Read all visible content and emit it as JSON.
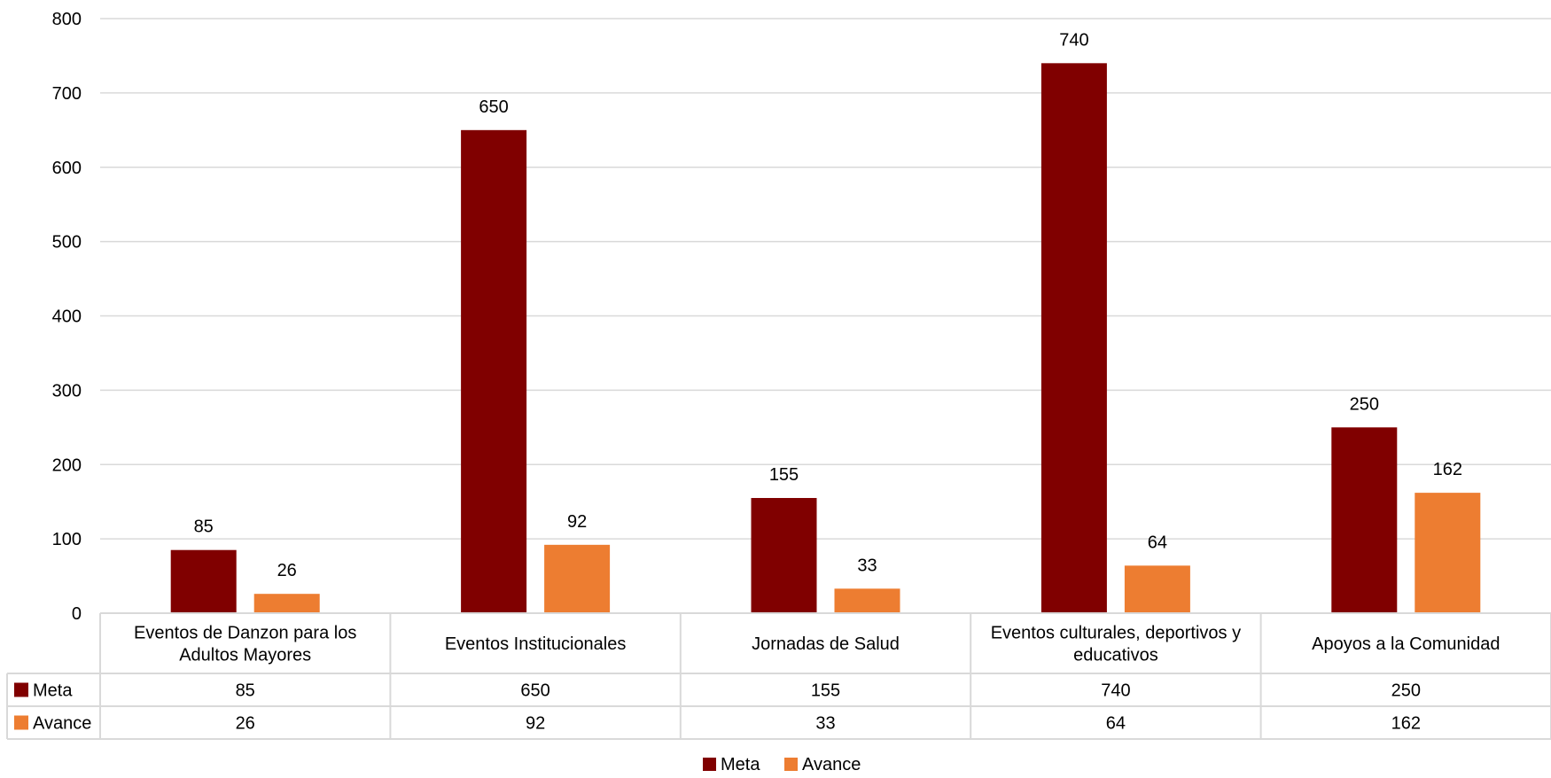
{
  "chart_data": {
    "type": "bar",
    "title": "",
    "xlabel": "",
    "ylabel": "",
    "categories": [
      "Eventos de Danzon para los Adultos Mayores",
      "Eventos Institucionales",
      "Jornadas de Salud",
      "Eventos culturales, deportivos y educativos",
      "Apoyos a la Comunidad"
    ],
    "categories_wrapped": [
      [
        "Eventos de Danzon para los",
        "Adultos Mayores"
      ],
      [
        "Eventos Institucionales"
      ],
      [
        "Jornadas de Salud"
      ],
      [
        "Eventos culturales, deportivos y",
        "educativos"
      ],
      [
        "Apoyos a la Comunidad"
      ]
    ],
    "series": [
      {
        "name": "Meta",
        "color": "#800000",
        "values": [
          85,
          650,
          155,
          740,
          250
        ]
      },
      {
        "name": "Avance",
        "color": "#ED7D31",
        "values": [
          26,
          92,
          33,
          64,
          162
        ]
      }
    ],
    "ylim": [
      0,
      800
    ],
    "yticks": [
      "0",
      "100",
      "200",
      "300",
      "400",
      "500",
      "600",
      "700",
      "800"
    ],
    "grid": true,
    "legend": "bottom",
    "data_table": true
  }
}
